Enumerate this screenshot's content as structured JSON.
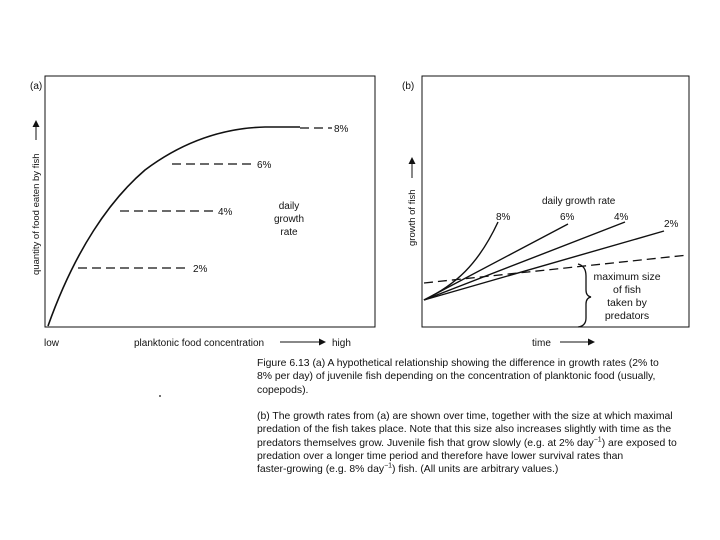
{
  "panel_a": {
    "label": "(a)",
    "y_axis_label": "quantity of food eaten by fish",
    "x_axis_label": "planktonic food concentration",
    "x_low": "low",
    "x_high": "high",
    "annotation": [
      "daily",
      "growth",
      "rate"
    ],
    "rates": [
      "8%",
      "6%",
      "4%",
      "2%"
    ]
  },
  "panel_b": {
    "label": "(b)",
    "y_axis_label": "growth of fish",
    "x_axis_label": "time",
    "legend_title": "daily growth rate",
    "rates": [
      "8%",
      "6%",
      "4%",
      "2%"
    ],
    "predator_label": [
      "maximum size",
      "of fish",
      "taken by",
      "predators"
    ]
  },
  "caption": {
    "part_a_lines": [
      "Figure 6.13   (a) A hypothetical relationship showing the difference in growth rates (2% to",
      "8% per day) of juvenile fish depending on the concentration of planktonic food (usually,",
      "copepods)."
    ],
    "part_b_lines": [
      "(b) The growth rates from (a) are shown over time, together with the size at which maximal",
      "predation of the fish takes place. Note that this size also increases slightly with time as the",
      "predators themselves grow. Juvenile fish that grow slowly (e.g. at 2% day",
      ") are exposed to",
      "predation over a longer time period and therefore have lower survival rates than",
      "faster-growing (e.g. 8% day",
      ") fish. (All units are arbitrary values.)"
    ],
    "superscript": "−1"
  },
  "colors": {
    "ink": "#111111",
    "background": "#ffffff"
  }
}
